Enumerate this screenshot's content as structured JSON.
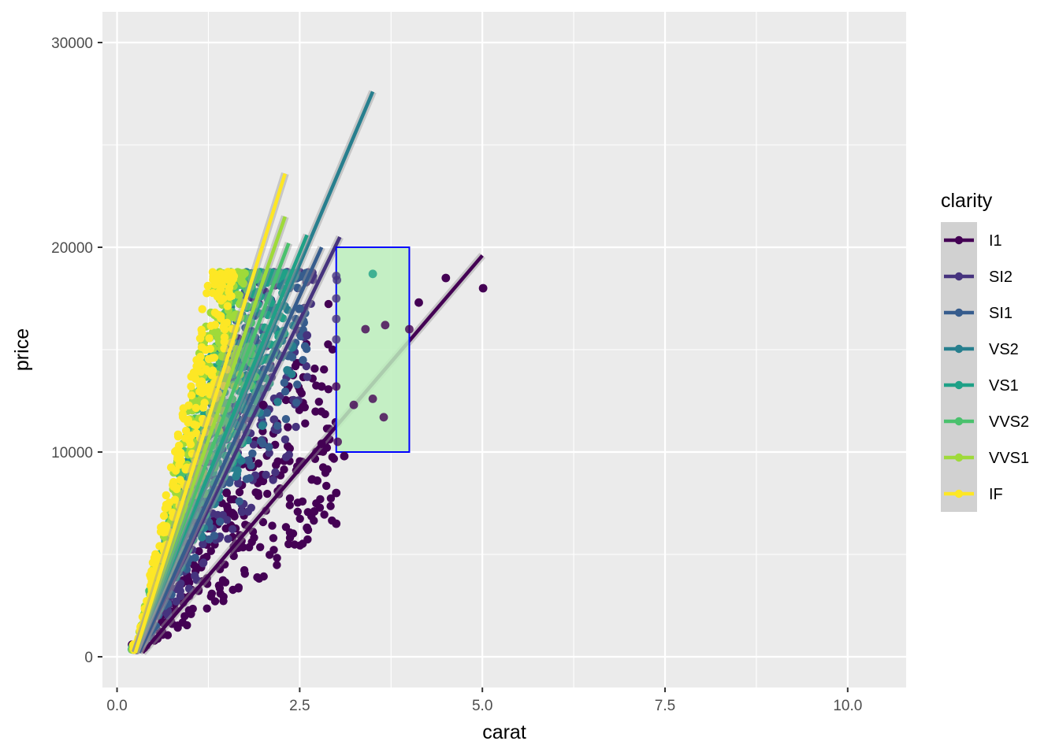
{
  "chart_data": {
    "type": "scatter",
    "title": "",
    "xlabel": "carat",
    "ylabel": "price",
    "xlim": [
      -0.2,
      10.8
    ],
    "ylim": [
      -1500,
      31500
    ],
    "x_ticks": [
      0.0,
      2.5,
      5.0,
      7.5,
      10.0
    ],
    "x_tick_labels": [
      "0.0",
      "2.5",
      "5.0",
      "7.5",
      "10.0"
    ],
    "y_ticks": [
      0,
      10000,
      20000,
      30000
    ],
    "y_tick_labels": [
      "0",
      "10000",
      "20000",
      "30000"
    ],
    "grid": true,
    "legend": {
      "title": "clarity",
      "position": "right"
    },
    "series": [
      {
        "name": "I1",
        "color": "#440154",
        "fit": {
          "x": [
            0.35,
            5.0
          ],
          "y": [
            200,
            19600
          ]
        }
      },
      {
        "name": "SI2",
        "color": "#46337E",
        "fit": {
          "x": [
            0.3,
            3.05
          ],
          "y": [
            200,
            20500
          ]
        }
      },
      {
        "name": "SI1",
        "color": "#365C8D",
        "fit": {
          "x": [
            0.3,
            2.8
          ],
          "y": [
            200,
            20000
          ]
        }
      },
      {
        "name": "VS2",
        "color": "#277F8E",
        "fit": {
          "x": [
            0.25,
            3.5
          ],
          "y": [
            200,
            27600
          ]
        }
      },
      {
        "name": "VS1",
        "color": "#1FA187",
        "fit": {
          "x": [
            0.25,
            2.6
          ],
          "y": [
            200,
            20600
          ]
        }
      },
      {
        "name": "VVS2",
        "color": "#4AC16D",
        "fit": {
          "x": [
            0.25,
            2.35
          ],
          "y": [
            200,
            20200
          ]
        }
      },
      {
        "name": "VVS1",
        "color": "#9FDA3A",
        "fit": {
          "x": [
            0.25,
            2.3
          ],
          "y": [
            200,
            21500
          ]
        }
      },
      {
        "name": "IF",
        "color": "#FDE725",
        "fit": {
          "x": [
            0.25,
            2.3
          ],
          "y": [
            200,
            23600
          ]
        }
      }
    ],
    "outlier_points": [
      {
        "x": 3.0,
        "y": 18600,
        "series": "SI2"
      },
      {
        "x": 3.01,
        "y": 18400,
        "series": "SI2"
      },
      {
        "x": 3.5,
        "y": 18700,
        "series": "VS1"
      },
      {
        "x": 3.24,
        "y": 12300,
        "series": "I1"
      },
      {
        "x": 3.4,
        "y": 16000,
        "series": "I1"
      },
      {
        "x": 3.5,
        "y": 12600,
        "series": "I1"
      },
      {
        "x": 3.65,
        "y": 11700,
        "series": "I1"
      },
      {
        "x": 3.67,
        "y": 16200,
        "series": "I1"
      },
      {
        "x": 4.0,
        "y": 16000,
        "series": "I1"
      },
      {
        "x": 4.13,
        "y": 17300,
        "series": "I1"
      },
      {
        "x": 4.5,
        "y": 18500,
        "series": "I1"
      },
      {
        "x": 5.01,
        "y": 18000,
        "series": "I1"
      },
      {
        "x": 3.0,
        "y": 13200,
        "series": "I1"
      },
      {
        "x": 3.0,
        "y": 8000,
        "series": "I1"
      },
      {
        "x": 3.0,
        "y": 6500,
        "series": "I1"
      },
      {
        "x": 3.02,
        "y": 10500,
        "series": "I1"
      },
      {
        "x": 3.11,
        "y": 9800,
        "series": "I1"
      },
      {
        "x": 2.8,
        "y": 13200,
        "series": "I1"
      },
      {
        "x": 2.74,
        "y": 8600,
        "series": "I1"
      },
      {
        "x": 2.7,
        "y": 7100,
        "series": "I1"
      },
      {
        "x": 2.6,
        "y": 6300,
        "series": "I1"
      },
      {
        "x": 2.8,
        "y": 10400,
        "series": "I1"
      },
      {
        "x": 2.0,
        "y": 12300,
        "series": "I1"
      },
      {
        "x": 3.0,
        "y": 15500,
        "series": "SI2"
      },
      {
        "x": 3.0,
        "y": 16500,
        "series": "SI2"
      },
      {
        "x": 3.0,
        "y": 17500,
        "series": "SI2"
      },
      {
        "x": 2.5,
        "y": 17000,
        "series": "SI1"
      },
      {
        "x": 2.6,
        "y": 15700,
        "series": "SI2"
      },
      {
        "x": 1.5,
        "y": 8000,
        "series": "I1"
      }
    ],
    "highlight_rect": {
      "x": [
        3.0,
        4.0
      ],
      "y": [
        10000,
        20000
      ],
      "fill": "#bdf0bd",
      "stroke": "#0000ff"
    }
  }
}
